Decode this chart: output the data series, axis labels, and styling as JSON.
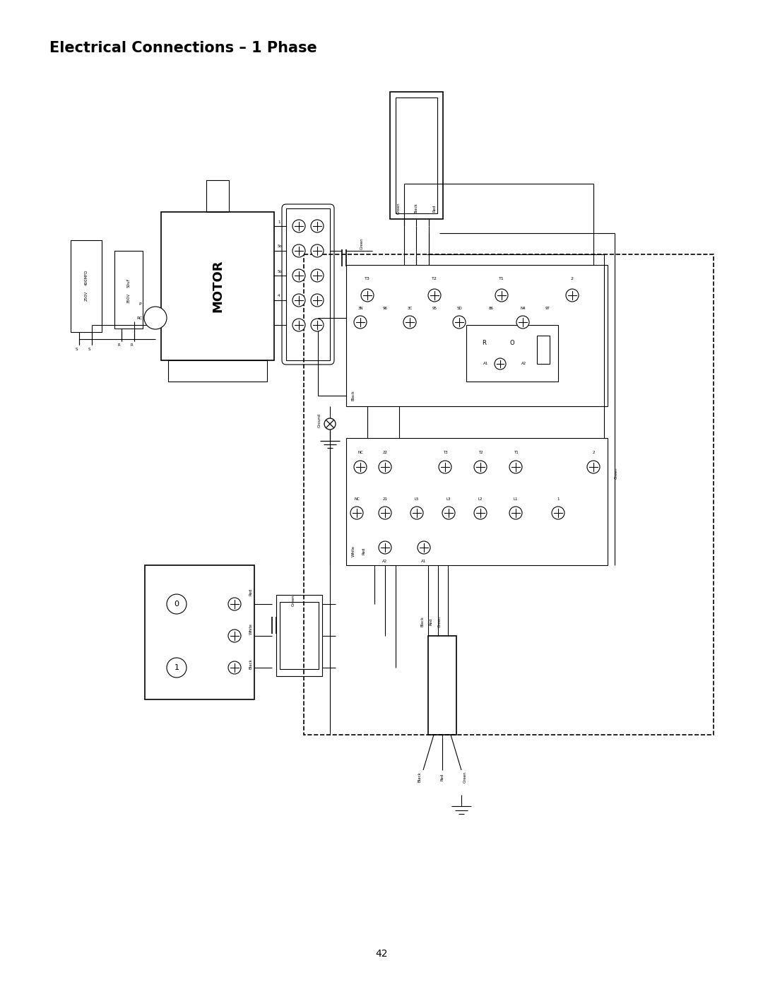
{
  "title": "Electrical Connections – 1 Phase",
  "page_number": "42",
  "bg_color": "#ffffff",
  "line_color": "#000000",
  "title_fontsize": 15,
  "page_fontsize": 10,
  "fig_width": 10.8,
  "fig_height": 13.97,
  "dpi": 100
}
